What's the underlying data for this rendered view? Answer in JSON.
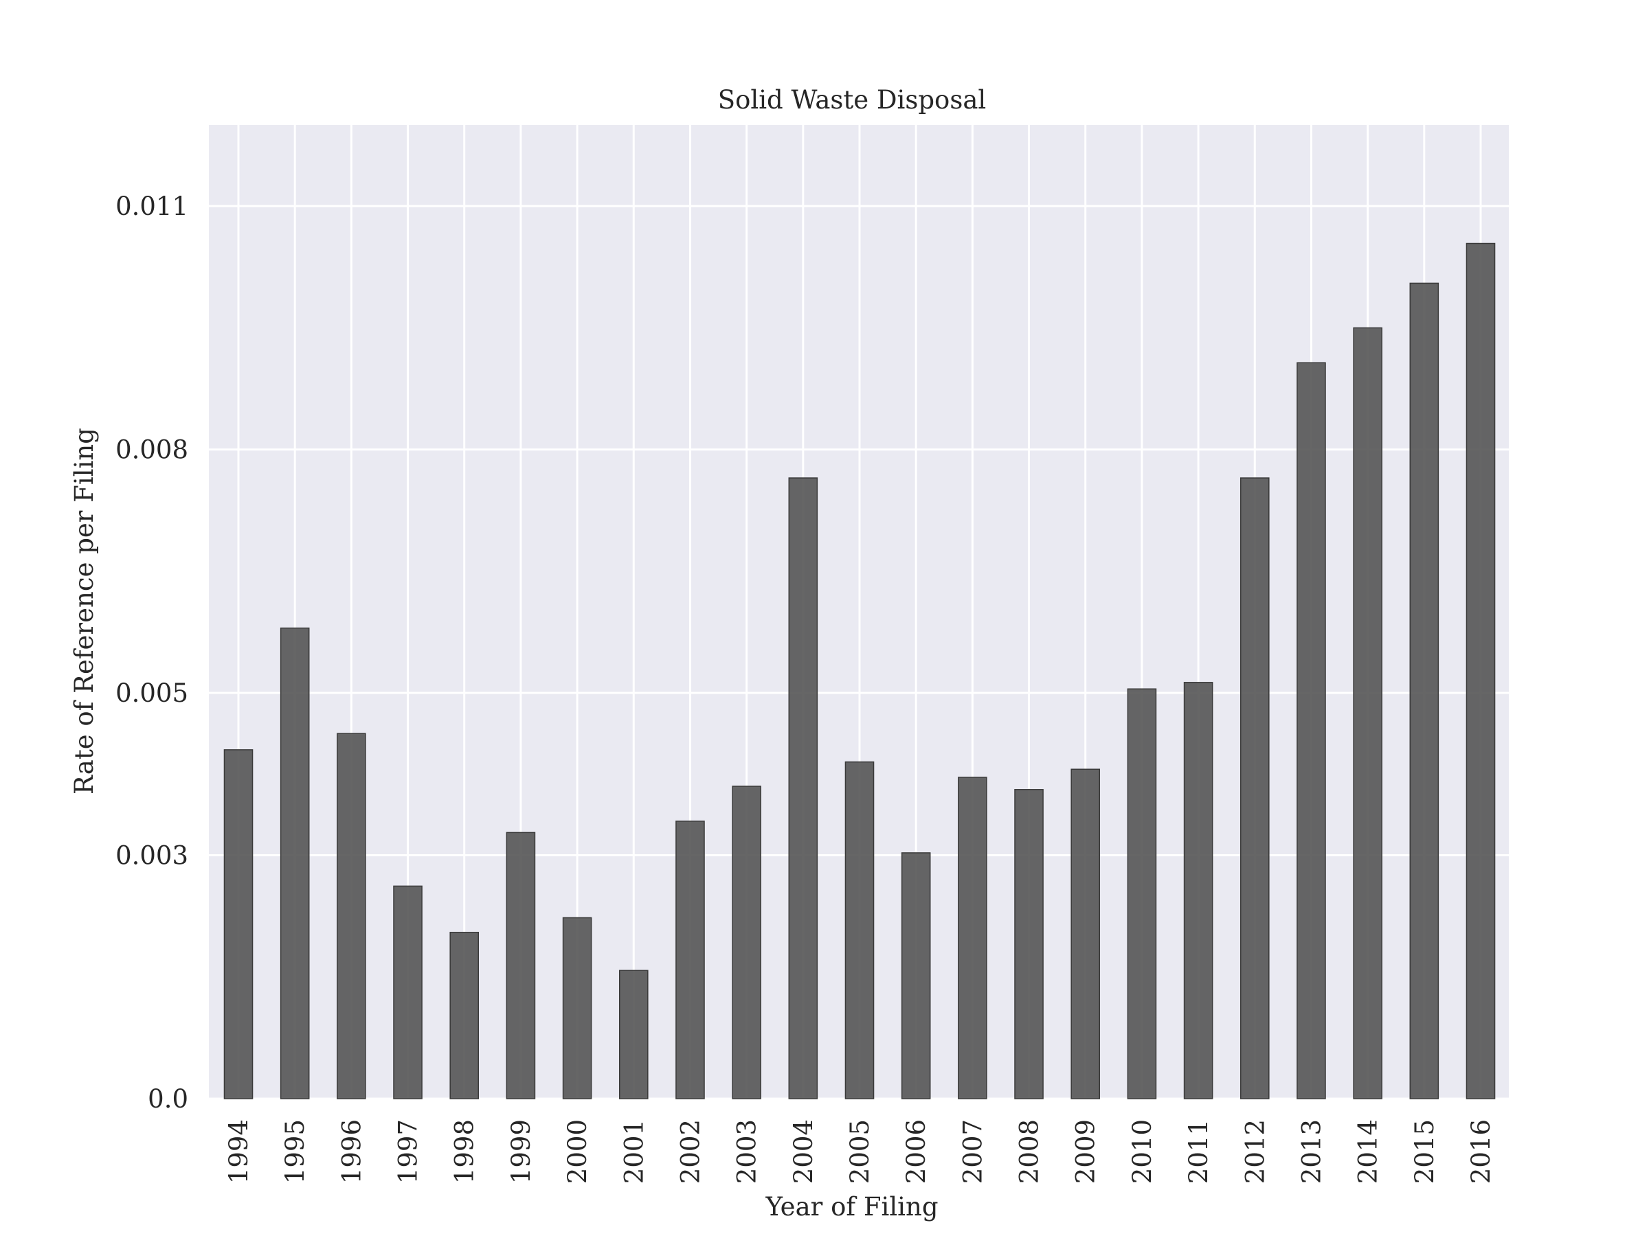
{
  "chart_data": {
    "type": "bar",
    "title": "Solid Waste Disposal",
    "xlabel": "Year of Filing",
    "ylabel": "Rate of Reference per Filing",
    "categories": [
      "1994",
      "1995",
      "1996",
      "1997",
      "1998",
      "1999",
      "2000",
      "2001",
      "2002",
      "2003",
      "2004",
      "2005",
      "2006",
      "2007",
      "2008",
      "2009",
      "2010",
      "2011",
      "2012",
      "2013",
      "2014",
      "2015",
      "2016"
    ],
    "values": [
      0.0043,
      0.0058,
      0.0045,
      0.00262,
      0.00205,
      0.00328,
      0.00223,
      0.00158,
      0.00342,
      0.00385,
      0.00765,
      0.00415,
      0.00303,
      0.00396,
      0.00381,
      0.00406,
      0.00505,
      0.00513,
      0.00765,
      0.00907,
      0.0095,
      0.01005,
      0.01054
    ],
    "yticks": [
      0.0,
      0.003,
      0.005,
      0.008,
      0.011
    ],
    "ytick_labels": [
      "0.0",
      "0.003",
      "0.005",
      "0.008",
      "0.011"
    ],
    "ylim": [
      0.0,
      0.012
    ],
    "grid": true,
    "colors": {
      "background": "#eaeaf2",
      "grid": "#ffffff",
      "bar": "#555555",
      "bar_edge": "#3a3a3a"
    }
  }
}
